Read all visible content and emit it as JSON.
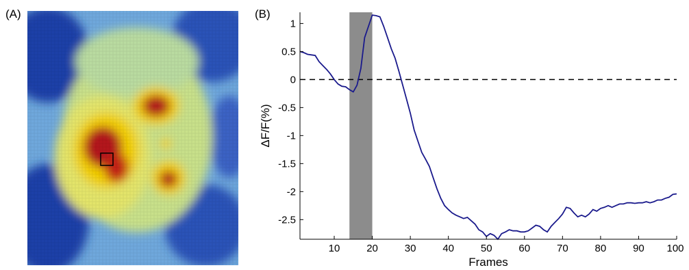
{
  "panels": {
    "a_label": "(A)",
    "b_label": "(B)"
  },
  "heatmap": {
    "colors": {
      "low": "#1f3fa8",
      "mid_low": "#6fa8dc",
      "mid": "#c8e08a",
      "mid_high": "#f3d000",
      "high": "#b3141a"
    },
    "roi_box_color": "#000000"
  },
  "chart_data": {
    "type": "line",
    "title": "",
    "xlabel": "Frames",
    "ylabel": "ΔF/F(%)",
    "xlim": [
      1,
      100
    ],
    "ylim": [
      -2.85,
      1.2
    ],
    "xticks": [
      10,
      20,
      30,
      40,
      50,
      60,
      70,
      80,
      90,
      100
    ],
    "yticks": [
      1,
      0.5,
      0,
      -0.5,
      -1,
      -1.5,
      -2,
      -2.5
    ],
    "ytick_labels": [
      "1",
      "0.5",
      "0",
      "-0.5",
      "-1",
      "-1.5",
      "-2",
      "-2.5"
    ],
    "line_color": "#1a1a8c",
    "baseline": {
      "y": 0,
      "style": "dashed",
      "color": "#000000"
    },
    "shaded_region": {
      "x0": 14,
      "x1": 20,
      "color": "#8c8c8c"
    },
    "series": [
      {
        "x": [
          1,
          2,
          3,
          4,
          5,
          6,
          7,
          8,
          9,
          10,
          11,
          12,
          13,
          14,
          15,
          16,
          17,
          18,
          19,
          20,
          21,
          22,
          23,
          24,
          25,
          26,
          27,
          28,
          29,
          30,
          31,
          32,
          33,
          34,
          35,
          36,
          37,
          38,
          39,
          40,
          41,
          42,
          43,
          44,
          45,
          46,
          47,
          48,
          49,
          50,
          51,
          52,
          53,
          54,
          55,
          56,
          57,
          58,
          59,
          60,
          61,
          62,
          63,
          64,
          65,
          66,
          67,
          68,
          69,
          70,
          71,
          72,
          73,
          74,
          75,
          76,
          77,
          78,
          79,
          80,
          81,
          82,
          83,
          84,
          85,
          86,
          87,
          88,
          89,
          90,
          91,
          92,
          93,
          94,
          95,
          96,
          97,
          98,
          99,
          100
        ],
        "values": [
          0.5,
          0.48,
          0.45,
          0.44,
          0.43,
          0.32,
          0.25,
          0.18,
          0.1,
          0.0,
          -0.08,
          -0.12,
          -0.13,
          -0.18,
          -0.22,
          -0.1,
          0.2,
          0.75,
          0.95,
          1.15,
          1.14,
          1.12,
          0.95,
          0.75,
          0.55,
          0.38,
          0.15,
          -0.1,
          -0.35,
          -0.6,
          -0.9,
          -1.1,
          -1.3,
          -1.42,
          -1.55,
          -1.75,
          -1.95,
          -2.12,
          -2.25,
          -2.32,
          -2.38,
          -2.42,
          -2.45,
          -2.48,
          -2.46,
          -2.52,
          -2.58,
          -2.68,
          -2.72,
          -2.8,
          -2.75,
          -2.78,
          -2.85,
          -2.75,
          -2.72,
          -2.68,
          -2.7,
          -2.7,
          -2.72,
          -2.72,
          -2.7,
          -2.65,
          -2.6,
          -2.62,
          -2.68,
          -2.72,
          -2.62,
          -2.55,
          -2.48,
          -2.4,
          -2.28,
          -2.3,
          -2.38,
          -2.45,
          -2.42,
          -2.45,
          -2.4,
          -2.32,
          -2.35,
          -2.3,
          -2.28,
          -2.25,
          -2.28,
          -2.25,
          -2.22,
          -2.22,
          -2.2,
          -2.2,
          -2.21,
          -2.2,
          -2.2,
          -2.18,
          -2.2,
          -2.18,
          -2.15,
          -2.15,
          -2.12,
          -2.1,
          -2.05,
          -2.04
        ]
      }
    ]
  }
}
